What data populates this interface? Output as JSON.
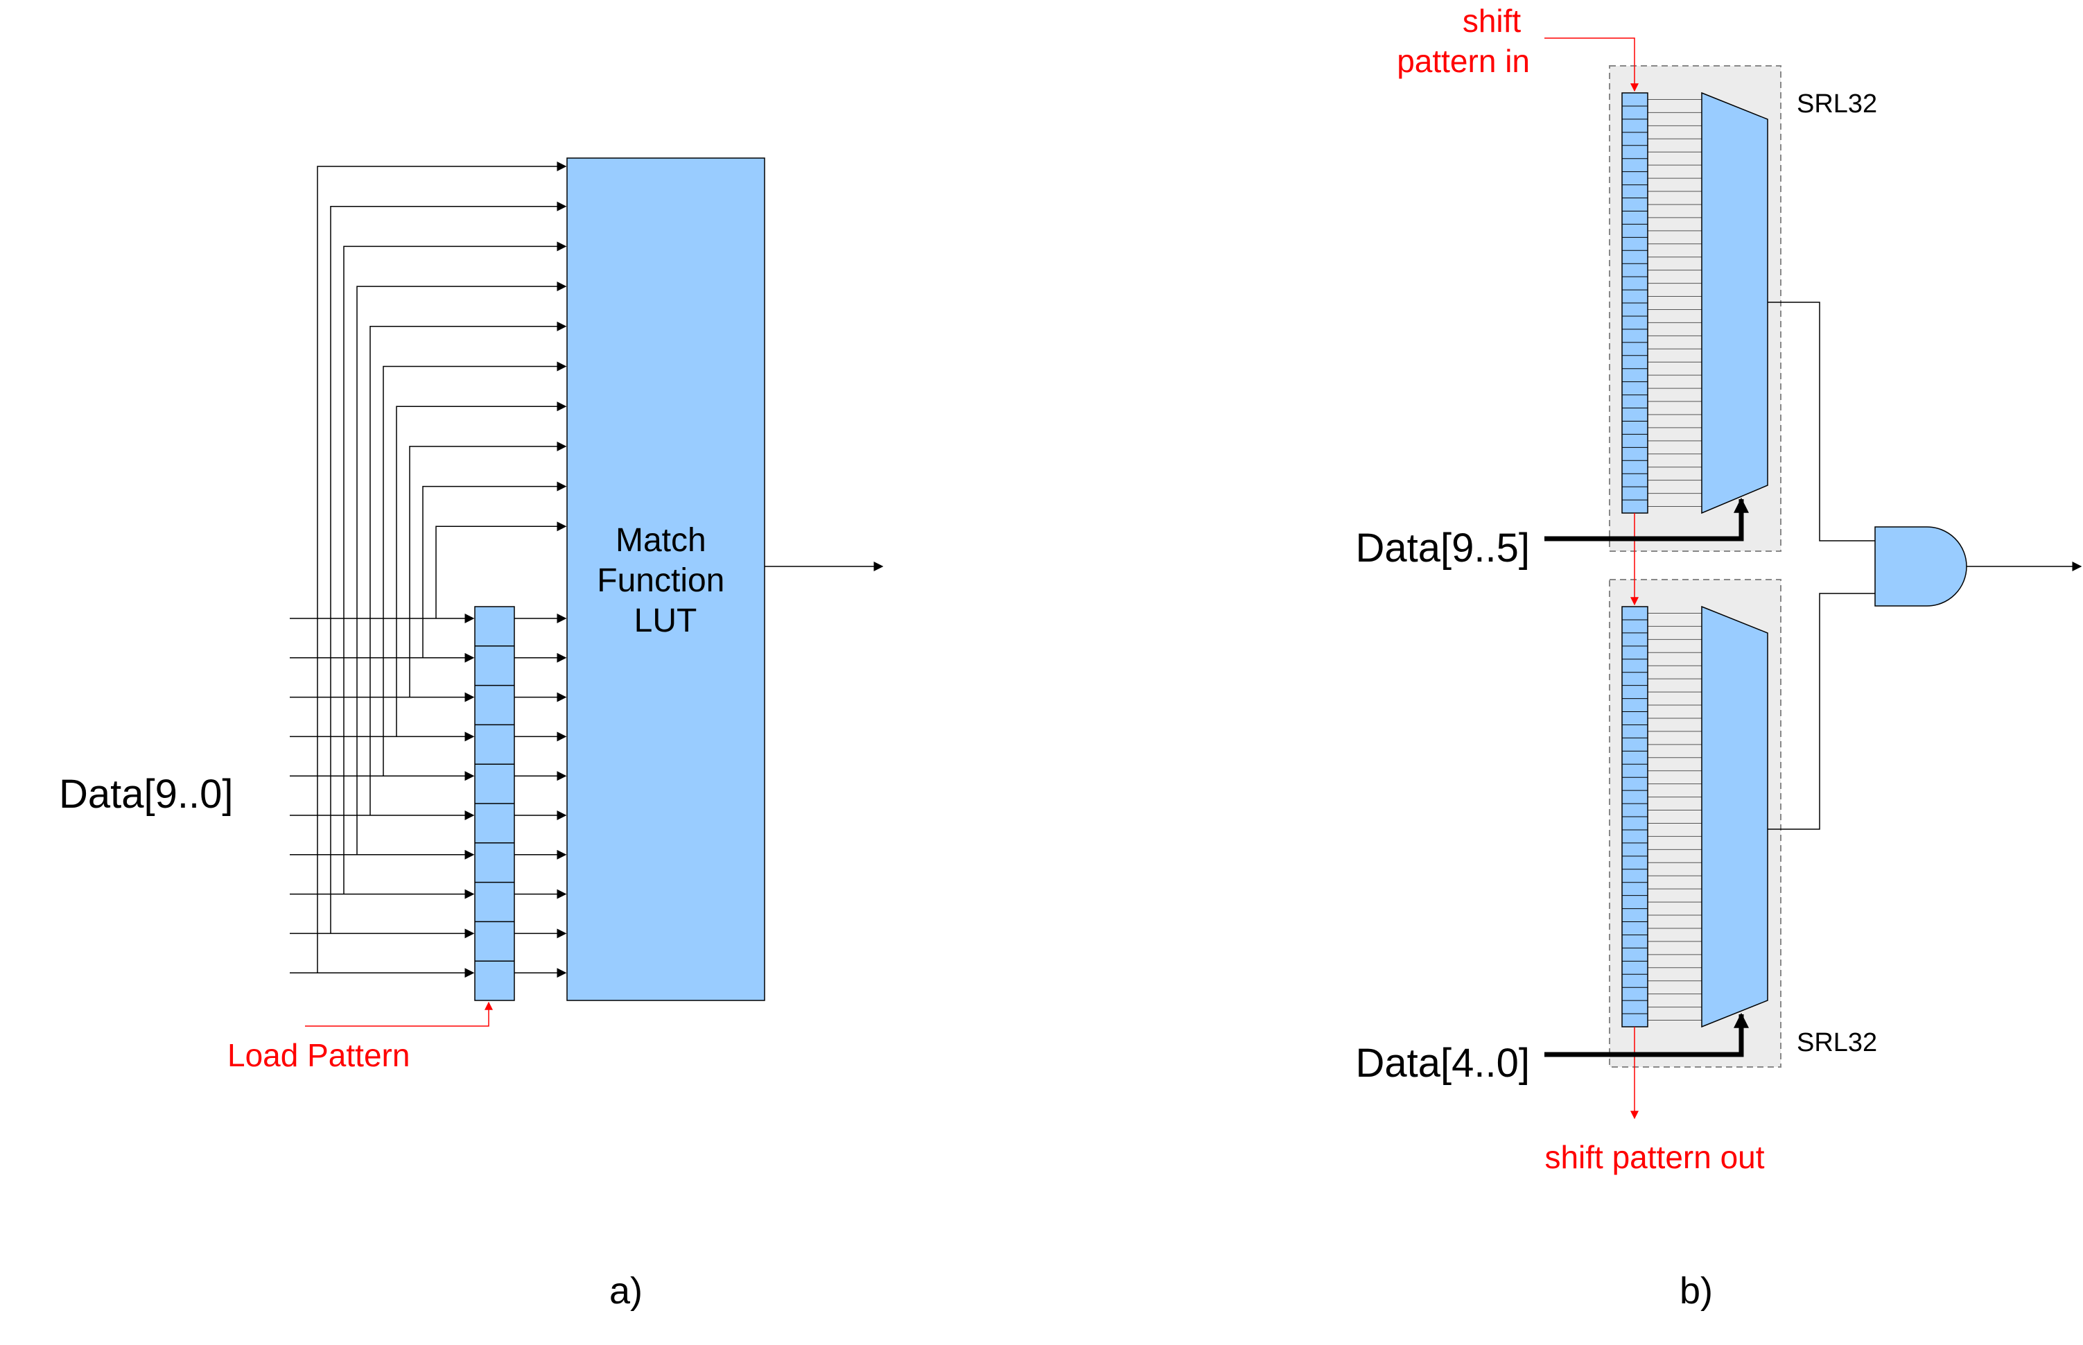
{
  "panel_a": {
    "data_label": "Data[9..0]",
    "lut_label_lines": [
      "Match",
      "Function",
      "LUT"
    ],
    "load_label": "Load Pattern",
    "caption": "a)",
    "register_cells": 10,
    "data_bits": 10
  },
  "panel_b": {
    "shift_in_lines": [
      "shift",
      "pattern in"
    ],
    "shift_out_label": "shift pattern out",
    "srl_top_label": "SRL32",
    "srl_bottom_label": "SRL32",
    "data_top_label": "Data[9..5]",
    "data_bottom_label": "Data[4..0]",
    "caption": "b)",
    "srl_cells": 32
  },
  "colors": {
    "block_fill": "#99ccff",
    "srl_background": "#ececec",
    "annotation_red": "#ff0000",
    "line": "#000000"
  }
}
